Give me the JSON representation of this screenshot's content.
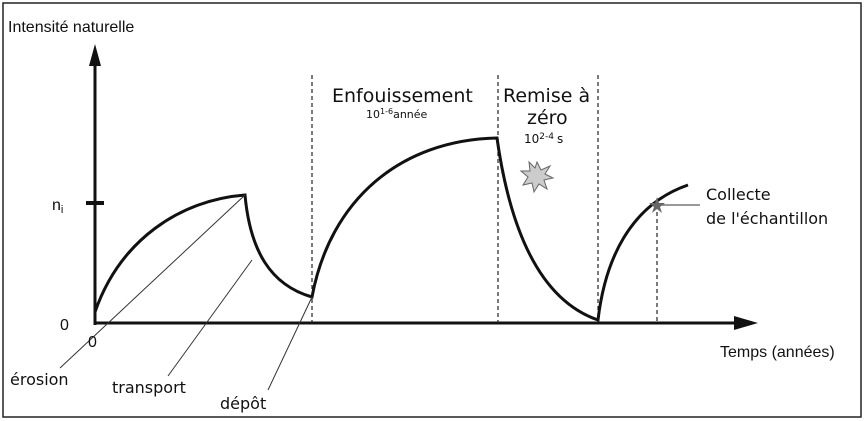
{
  "axes": {
    "y_label": "Intensité naturelle",
    "y_level": {
      "base": "n",
      "sub": "i"
    },
    "y_origin": "0",
    "x_origin": "0",
    "x_label": "Temps (années)"
  },
  "phases": {
    "erosion": "érosion",
    "transport": "transport",
    "deposit": "dépôt"
  },
  "burial": {
    "title": "Enfouissement",
    "base": "10",
    "exponent": "1-6",
    "unit": "année"
  },
  "reset": {
    "title_line1": "Remise à",
    "title_line2": "zéro",
    "base": "10",
    "exponent": "2-4",
    "unit": "s"
  },
  "collection": {
    "line1": "Collecte",
    "line2": "de l'échantillon"
  }
}
